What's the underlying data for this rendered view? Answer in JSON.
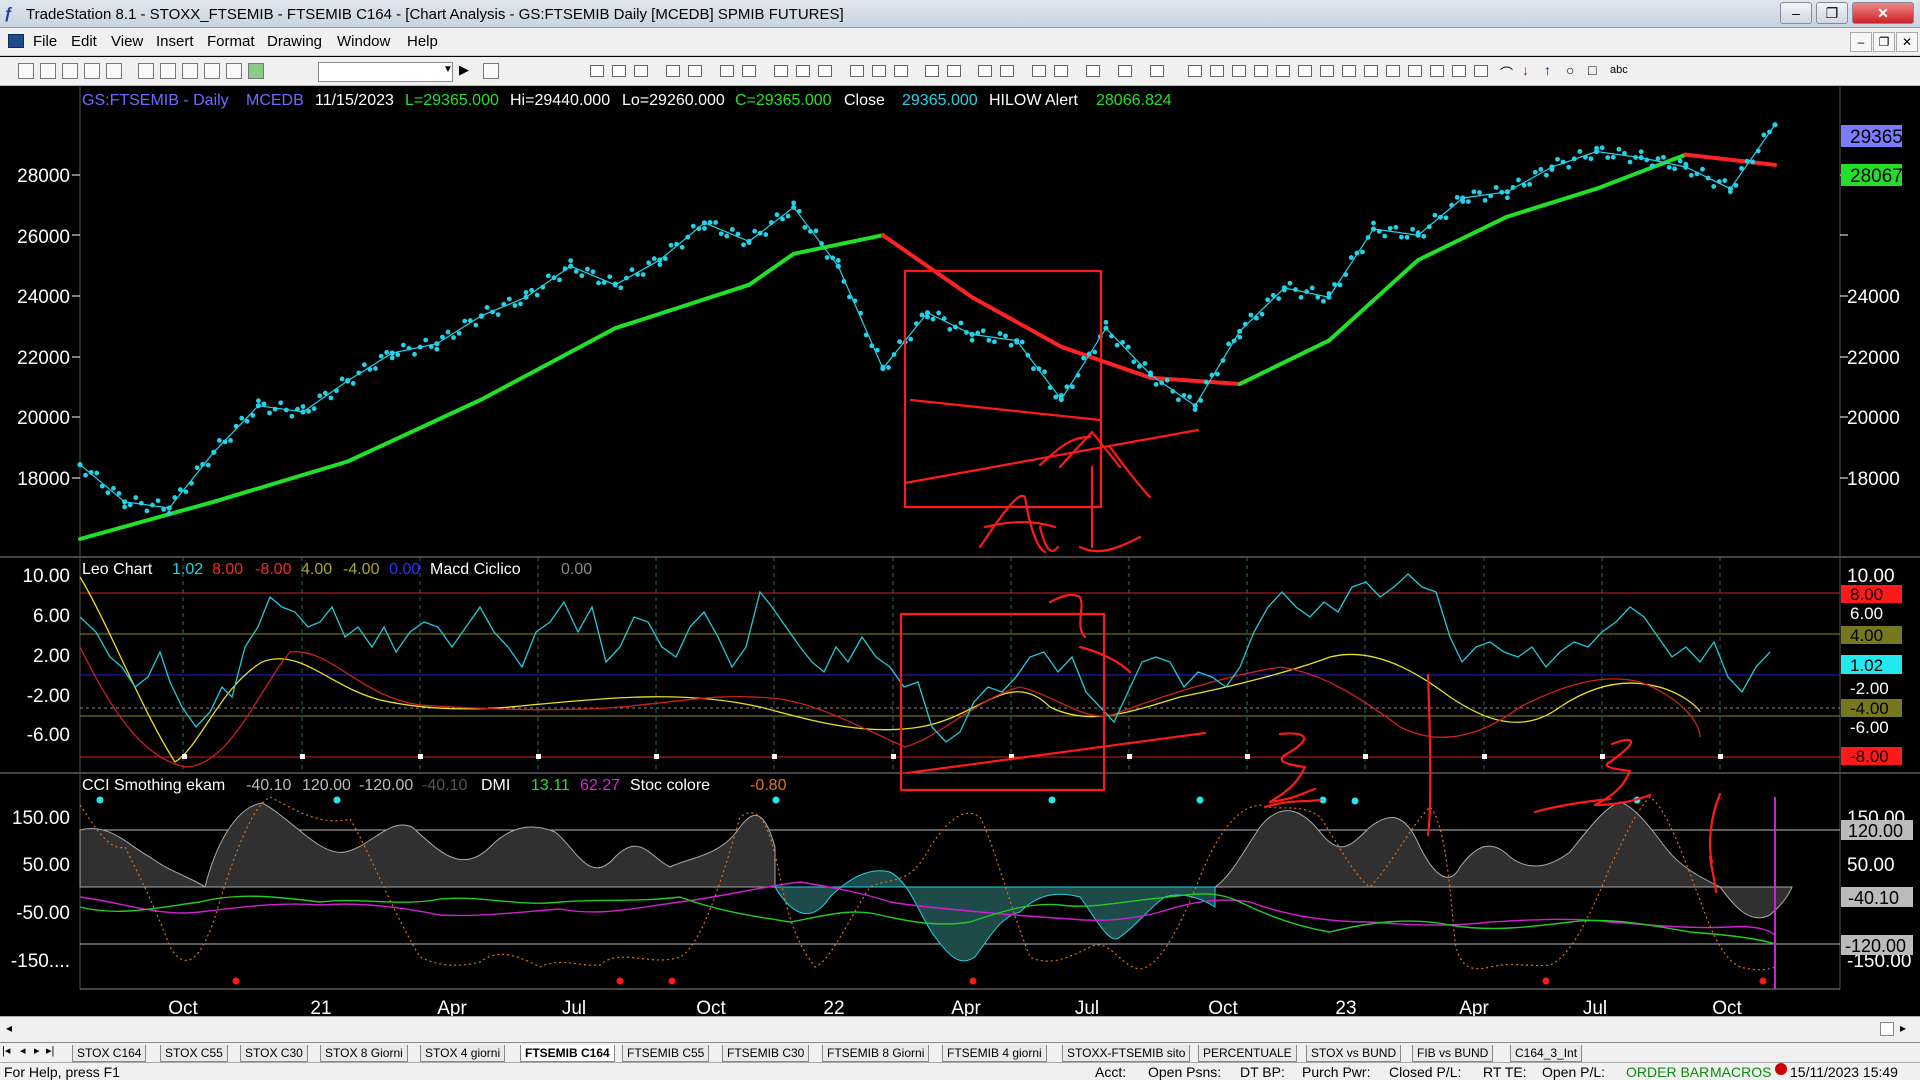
{
  "window": {
    "title": "TradeStation 8.1 - STOXX_FTSEMIB - FTSEMIB C164 - [Chart Analysis - GS:FTSEMIB  Daily  [MCEDB] SPMIB FUTURES]"
  },
  "menu": {
    "items": [
      "File",
      "Edit",
      "View",
      "Insert",
      "Format",
      "Drawing",
      "Window",
      "Help"
    ]
  },
  "toolbar": {
    "combo_value": ""
  },
  "price_header": {
    "symbol": "GS:FTSEMIB - Daily",
    "source": "MCEDB",
    "date": "11/15/2023",
    "last": "L=29365.000",
    "high": "Hi=29440.000",
    "low": "Lo=29260.000",
    "close_c": "C=29365.000",
    "close_label": "Close",
    "close_value": "29365.000",
    "alert_label": "HILOW Alert",
    "alert_value": "28066.824"
  },
  "price_axis": {
    "ticks": [
      "28000",
      "26000",
      "24000",
      "22000",
      "20000",
      "18000"
    ],
    "last_tag": "29365",
    "alert_tag": "28067"
  },
  "leo_header": {
    "name": "Leo Chart",
    "v1": "1.02",
    "v2": "8.00",
    "v3": "-8.00",
    "v4": "4.00",
    "v5": "-4.00",
    "v6": "0.00",
    "macd_label": "Macd Ciclico",
    "macd_value": "0.00"
  },
  "leo_axis": {
    "ticks": [
      "10.00",
      "6.00",
      "2.00",
      "-2.00",
      "-6.00"
    ],
    "tags": [
      "8.00",
      "6.00",
      "4.00",
      "1.02",
      "-2.00",
      "-4.00",
      "-6.00",
      "-8.00"
    ]
  },
  "cci_header": {
    "name": "CCI Smothing ekam",
    "v1": "-40.10",
    "v2": "120.00",
    "v3": "-120.00",
    "v4": "-40.10",
    "dmi_label": "DMI",
    "dmi1": "13.11",
    "dmi2": "62.27",
    "stoc_label": "Stoc colore",
    "stoc_value": "-0.80"
  },
  "cci_axis": {
    "ticks": [
      "150.00",
      "50.00",
      "-50.00",
      "-150...."
    ],
    "tags": [
      "150.00",
      "120.00",
      "50.00",
      "-40.10",
      "-120.00",
      "-150.00"
    ]
  },
  "time_axis": {
    "labels": [
      "Oct",
      "21",
      "Apr",
      "Jul",
      "Oct",
      "22",
      "Apr",
      "Jul",
      "Oct",
      "23",
      "Apr",
      "Jul",
      "Oct"
    ]
  },
  "tabs": [
    "STOX C164",
    "STOX C55",
    "STOX  C30",
    "STOX  8 Giorni",
    "STOX 4 giorni",
    "FTSEMIB C164",
    "FTSEMIB C55",
    "FTSEMIB C30",
    "FTSEMIB  8 Giorni",
    "FTSEMIB  4 giorni",
    "STOXX-FTSEMIB sito",
    "PERCENTUALE",
    "STOX vs BUND",
    "FIB vs BUND",
    "C164_3_Int"
  ],
  "active_tab": "FTSEMIB C164",
  "status": {
    "help": "For Help, press F1",
    "acct": "Acct:",
    "open_psns": "Open Psns:",
    "dt_bp": "DT BP:",
    "purch_pwr": "Purch Pwr:",
    "closed_pl": "Closed P/L:",
    "rt_te": "RT TE:",
    "open_pl": "Open P/L:",
    "order_bar": "ORDER BAR",
    "macros": "MACROS",
    "datetime": "15/11/2023 15:49"
  },
  "colors": {
    "price_dots": "#22d3e8",
    "ma_up": "#22e02a",
    "ma_down": "#ff2222",
    "annotation": "#ff1a1a",
    "axis_text": "#ffffff",
    "tag_price": "#7b7bff",
    "tag_ma": "#22e02a"
  },
  "chart_data": {
    "type": "line",
    "title": "GS:FTSEMIB - Daily",
    "y_range": [
      16000,
      30000
    ],
    "series": [
      {
        "name": "Close",
        "dates": [
          "2020-09",
          "2020-10",
          "2020-11",
          "2020-12",
          "2021-01",
          "2021-02",
          "2021-03",
          "2021-04",
          "2021-05",
          "2021-06",
          "2021-07",
          "2021-08",
          "2021-09",
          "2021-10",
          "2021-11",
          "2021-12",
          "2022-01",
          "2022-02",
          "2022-03",
          "2022-04",
          "2022-05",
          "2022-06",
          "2022-07",
          "2022-08",
          "2022-09",
          "2022-10",
          "2022-11",
          "2022-12",
          "2023-01",
          "2023-02",
          "2023-03",
          "2023-04",
          "2023-05",
          "2023-06",
          "2023-07",
          "2023-08",
          "2023-09",
          "2023-10",
          "2023-11"
        ],
        "values": [
          18400,
          17200,
          17000,
          18800,
          20300,
          20100,
          21100,
          22000,
          22300,
          23200,
          23800,
          24800,
          24200,
          25000,
          26200,
          25600,
          26700,
          24800,
          21500,
          23300,
          22600,
          22400,
          20500,
          22800,
          21300,
          20300,
          22700,
          24100,
          23800,
          26000,
          25800,
          27000,
          27200,
          28000,
          28500,
          28300,
          28000,
          27300,
          29365
        ]
      },
      {
        "name": "HILOW Alert",
        "dates": [
          "2020-09",
          "2020-12",
          "2021-03",
          "2021-06",
          "2021-09",
          "2021-12",
          "2022-01",
          "2022-03",
          "2022-05",
          "2022-07",
          "2022-09",
          "2022-11",
          "2023-01",
          "2023-03",
          "2023-05",
          "2023-07",
          "2023-09",
          "2023-11"
        ],
        "values": [
          16000,
          17200,
          18500,
          20500,
          22800,
          24200,
          25200,
          25800,
          23800,
          22200,
          21200,
          21000,
          22400,
          25000,
          26400,
          27300,
          28400,
          28067
        ]
      }
    ]
  }
}
